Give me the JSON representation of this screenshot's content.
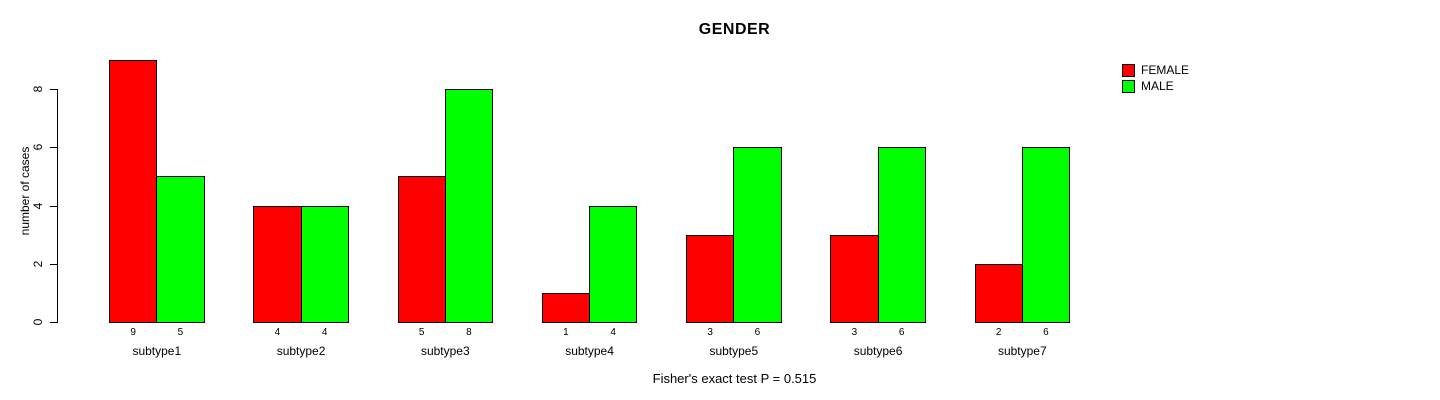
{
  "title": "GENDER",
  "ylabel": "number of cases",
  "footer": "Fisher's exact test P = 0.515",
  "legend": [
    {
      "label": "FEMALE",
      "color": "#ff0000"
    },
    {
      "label": "MALE",
      "color": "#00ff00"
    }
  ],
  "chart_data": {
    "type": "bar",
    "title": "GENDER",
    "xlabel": "",
    "ylabel": "number of cases",
    "categories": [
      "subtype1",
      "subtype2",
      "subtype3",
      "subtype4",
      "subtype5",
      "subtype6",
      "subtype7"
    ],
    "series": [
      {
        "name": "FEMALE",
        "color": "#ff0000",
        "values": [
          9,
          4,
          5,
          1,
          3,
          3,
          2
        ]
      },
      {
        "name": "MALE",
        "color": "#00ff00",
        "values": [
          5,
          4,
          8,
          4,
          6,
          6,
          6
        ]
      }
    ],
    "ylim": [
      0,
      9
    ],
    "yticks": [
      0,
      2,
      4,
      6,
      8
    ],
    "grid": false,
    "legend_position": "top-right",
    "bar_value_labels": true,
    "annotation": "Fisher's exact test P = 0.515"
  }
}
